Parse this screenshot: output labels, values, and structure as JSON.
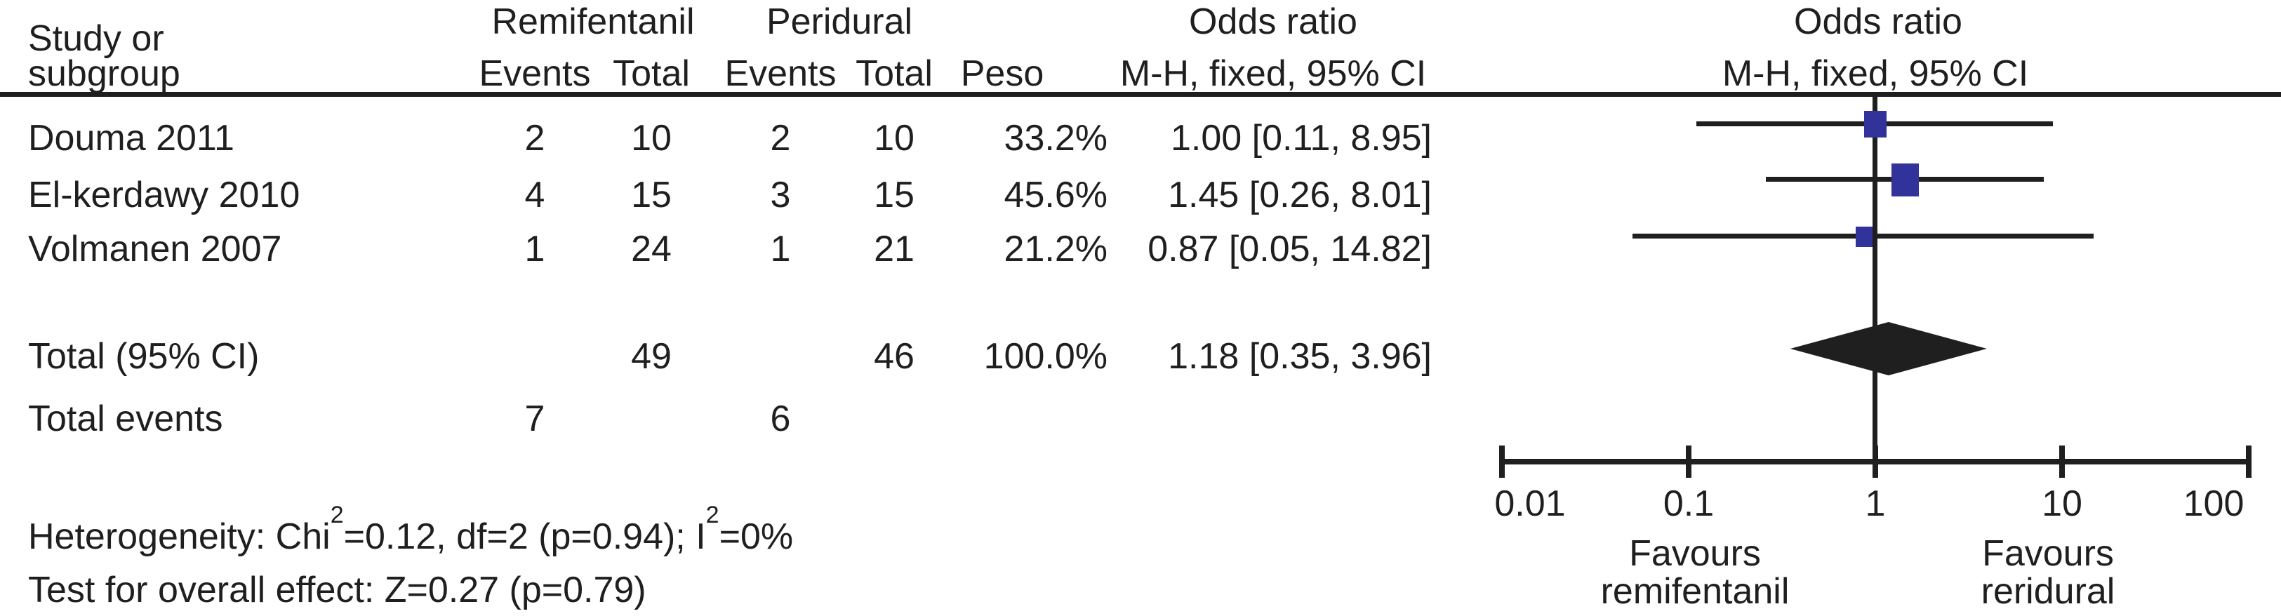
{
  "colors": {
    "ink": "#1f1f1f",
    "marker_blue": "#32329B",
    "background": "#ffffff"
  },
  "header": {
    "study_line1": "Study or",
    "study_line2": "subgroup",
    "group_remifentanil": "Remifentanil",
    "group_peridural": "Peridural",
    "group_or_text": "Odds ratio",
    "group_or_plot": "Odds ratio",
    "sub_events_remi": "Events",
    "sub_total_remi": "Total",
    "sub_events_peri": "Events",
    "sub_total_peri": "Total",
    "sub_peso": "Peso",
    "sub_mh_text": "M-H, fixed, 95% CI",
    "sub_mh_plot": "M-H, fixed, 95% CI"
  },
  "rows": [
    {
      "study": "Douma 2011",
      "remi_events": "2",
      "remi_total": "10",
      "peri_events": "2",
      "peri_total": "10",
      "weight": "33.2%",
      "or_ci": "1.00 [0.11, 8.95]"
    },
    {
      "study": "El-kerdawy 2010",
      "remi_events": "4",
      "remi_total": "15",
      "peri_events": "3",
      "peri_total": "15",
      "weight": "45.6%",
      "or_ci": "1.45 [0.26, 8.01]"
    },
    {
      "study": "Volmanen 2007",
      "remi_events": "1",
      "remi_total": "24",
      "peri_events": "1",
      "peri_total": "21",
      "weight": "21.2%",
      "or_ci": "0.87 [0.05, 14.82]"
    }
  ],
  "total_row": {
    "label": "Total (95% CI)",
    "remi_total": "49",
    "peri_total": "46",
    "weight": "100.0%",
    "or_ci": "1.18 [0.35, 3.96]"
  },
  "total_events_row": {
    "label": "Total events",
    "remi_events": "7",
    "peri_events": "6"
  },
  "footnotes": {
    "het_prefix": "Heterogeneity: Chi",
    "het_sup1": "2",
    "het_mid": "=0.12, df=2 (p=0.94); I",
    "het_sup2": "2",
    "het_tail": "=0%",
    "overall_effect": "Test for overall effect: Z=0.27 (p=0.79)"
  },
  "plot": {
    "favours_left_line1": "Favours",
    "favours_left_line2": "remifentanil",
    "favours_right_line1": "Favours",
    "favours_right_line2": "reridural"
  },
  "chart_data": {
    "type": "scatter",
    "subtype": "forest-plot",
    "effect_measure": "Odds ratio, M-H, fixed, 95% CI",
    "x_scale": "log",
    "xlim": [
      0.01,
      100
    ],
    "x_ticks": [
      "0.01",
      "0.1",
      "1",
      "10",
      "100"
    ],
    "studies": [
      {
        "name": "Douma 2011",
        "or": 1.0,
        "ci_low": 0.11,
        "ci_high": 8.95,
        "weight_pct": 33.2,
        "remifentanil_events": 2,
        "remifentanil_total": 10,
        "peridural_events": 2,
        "peridural_total": 10
      },
      {
        "name": "El-kerdawy 2010",
        "or": 1.45,
        "ci_low": 0.26,
        "ci_high": 8.01,
        "weight_pct": 45.6,
        "remifentanil_events": 4,
        "remifentanil_total": 15,
        "peridural_events": 3,
        "peridural_total": 15
      },
      {
        "name": "Volmanen 2007",
        "or": 0.87,
        "ci_low": 0.05,
        "ci_high": 14.82,
        "weight_pct": 21.2,
        "remifentanil_events": 1,
        "remifentanil_total": 24,
        "peridural_events": 1,
        "peridural_total": 21
      }
    ],
    "total": {
      "name": "Total (95% CI)",
      "or": 1.18,
      "ci_low": 0.35,
      "ci_high": 3.96,
      "weight_pct": 100.0,
      "remifentanil_total": 49,
      "peridural_total": 46
    },
    "total_events": {
      "remifentanil": 7,
      "peridural": 6
    },
    "heterogeneity": "Chi2=0.12, df=2 (p=0.94); I2=0%",
    "overall_effect": "Z=0.27 (p=0.79)"
  }
}
